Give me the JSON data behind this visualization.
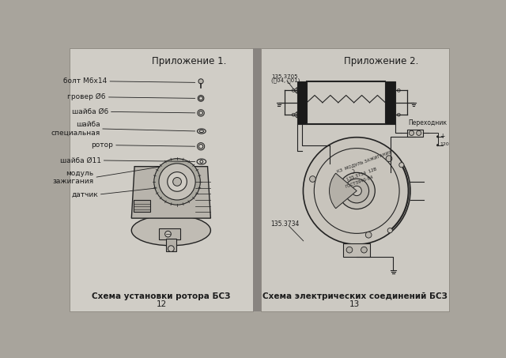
{
  "bg_color": "#a8a49c",
  "left_bg": "#d0cdc6",
  "right_bg": "#ccc9c2",
  "spine_color": "#888480",
  "title_left": "Приложение 1.",
  "title_right": "Приложение 2.",
  "caption_left": "Схема установки ротора БСЗ",
  "page_num_left": "12",
  "caption_right": "Схема электрических соединений БСЗ",
  "page_num_right": "13",
  "labels_left": [
    "болт М6х14",
    "гровер Ø6",
    "шайба Ø6",
    "шайба\nспециальная",
    "ротор",
    "шайба Ø11",
    "модуль\nзажигания",
    "датчик"
  ],
  "label_135_3705": "135.3705\n(䄒04, 䄒01)",
  "label_perehodnik": "Переходник",
  "label_135_3734": "135.3734",
  "tc": "#1c1c1c",
  "lc": "#222222",
  "fs_title": 8.5,
  "fs_label": 6.5,
  "fs_caption": 7.5,
  "fs_small": 5.0
}
